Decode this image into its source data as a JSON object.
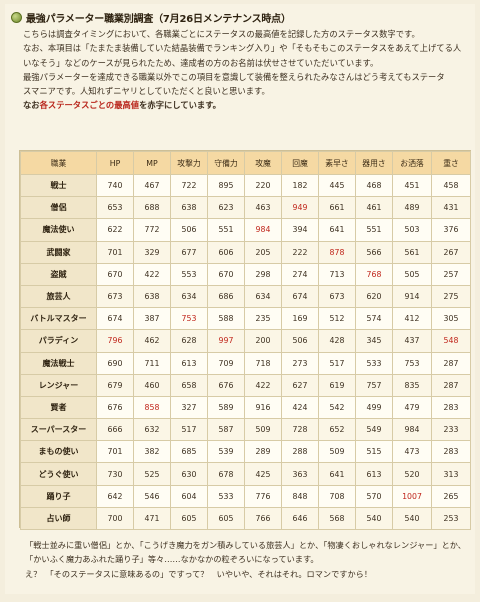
{
  "title": "最強パラメーター職業別調査（7月26日メンテナンス時点）",
  "intro_lines": [
    "こちらは調査タイミングにおいて、各職業ごとにステータスの最高値を記録した方のステータス数字です。",
    "なお、本項目は「たまたま装備していた結晶装備でランキング入り」や「そもそもこのステータスをあえて上げてる人",
    "いなそう」などのケースが見られたため、達成者の方のお名前は伏せさせていただいています。",
    "最強パラメーターを達成できる職業以外でこの項目を意識して装備を整えられたみなさんはどう考えてもステータ",
    "スマニアです。人知れずニヤリとしていただくと良いと思います。"
  ],
  "intro_note_prefix": "なお",
  "intro_note_red": "各ステータスごとの最高値",
  "intro_note_suffix": "を赤字にしています。",
  "table": {
    "headers": [
      "職業",
      "HP",
      "MP",
      "攻撃力",
      "守備力",
      "攻魔",
      "回魔",
      "素早さ",
      "器用さ",
      "お洒落",
      "重さ"
    ],
    "rows": [
      {
        "job": "戦士",
        "values": [
          "740",
          "467",
          "722",
          "895",
          "220",
          "182",
          "445",
          "468",
          "451",
          "458"
        ],
        "max": []
      },
      {
        "job": "僧侶",
        "values": [
          "653",
          "688",
          "638",
          "623",
          "463",
          "949",
          "661",
          "461",
          "489",
          "431"
        ],
        "max": [
          5
        ]
      },
      {
        "job": "魔法使い",
        "values": [
          "622",
          "772",
          "506",
          "551",
          "984",
          "394",
          "641",
          "551",
          "503",
          "376"
        ],
        "max": [
          4
        ]
      },
      {
        "job": "武闘家",
        "values": [
          "701",
          "329",
          "677",
          "606",
          "205",
          "222",
          "878",
          "566",
          "561",
          "267"
        ],
        "max": [
          6
        ]
      },
      {
        "job": "盗賊",
        "values": [
          "670",
          "422",
          "553",
          "670",
          "298",
          "274",
          "713",
          "768",
          "505",
          "257"
        ],
        "max": [
          7
        ]
      },
      {
        "job": "旅芸人",
        "values": [
          "673",
          "638",
          "634",
          "686",
          "634",
          "674",
          "673",
          "620",
          "914",
          "275"
        ],
        "max": []
      },
      {
        "job": "バトルマスター",
        "values": [
          "674",
          "387",
          "753",
          "588",
          "235",
          "169",
          "512",
          "574",
          "412",
          "305"
        ],
        "max": [
          2
        ]
      },
      {
        "job": "パラディン",
        "values": [
          "796",
          "462",
          "628",
          "997",
          "200",
          "506",
          "428",
          "345",
          "437",
          "548"
        ],
        "max": [
          0,
          3,
          9
        ]
      },
      {
        "job": "魔法戦士",
        "values": [
          "690",
          "711",
          "613",
          "709",
          "718",
          "273",
          "517",
          "533",
          "753",
          "287"
        ],
        "max": []
      },
      {
        "job": "レンジャー",
        "values": [
          "679",
          "460",
          "658",
          "676",
          "422",
          "627",
          "619",
          "757",
          "835",
          "287"
        ],
        "max": []
      },
      {
        "job": "賢者",
        "values": [
          "676",
          "858",
          "327",
          "589",
          "916",
          "424",
          "542",
          "499",
          "479",
          "283"
        ],
        "max": [
          1
        ]
      },
      {
        "job": "スーパースター",
        "values": [
          "666",
          "632",
          "517",
          "587",
          "509",
          "728",
          "652",
          "549",
          "984",
          "233"
        ],
        "max": []
      },
      {
        "job": "まもの使い",
        "values": [
          "701",
          "382",
          "685",
          "539",
          "289",
          "288",
          "509",
          "515",
          "473",
          "283"
        ],
        "max": []
      },
      {
        "job": "どうぐ使い",
        "values": [
          "730",
          "525",
          "630",
          "678",
          "425",
          "363",
          "641",
          "613",
          "520",
          "313"
        ],
        "max": []
      },
      {
        "job": "踊り子",
        "values": [
          "642",
          "546",
          "604",
          "533",
          "776",
          "848",
          "708",
          "570",
          "1007",
          "265"
        ],
        "max": [
          8
        ]
      },
      {
        "job": "占い師",
        "values": [
          "700",
          "471",
          "605",
          "605",
          "766",
          "646",
          "568",
          "540",
          "540",
          "253"
        ],
        "max": []
      }
    ]
  },
  "footer_lines": [
    "「戦士並みに重い僧侶」とか、「こうげき魔力をガン積みしている旅芸人」とか、「物凄くおしゃれなレンジャー」とか、",
    "「かいふく魔力あふれた踊り子」等々……なかなかの粒ぞろいになっています。",
    "え？　「そのステータスに意味あるの」ですって？　いやいや、それはそれ。ロマンですから！"
  ]
}
